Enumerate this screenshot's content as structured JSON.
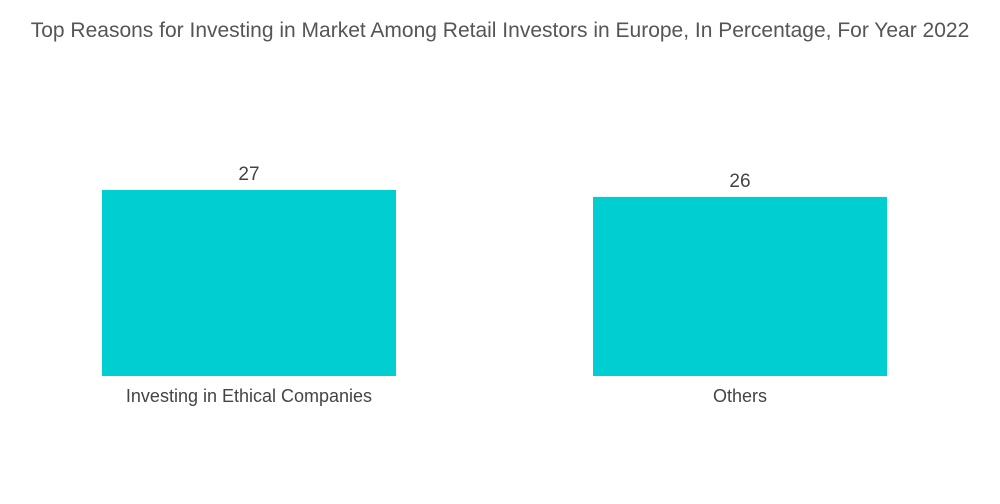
{
  "chart_data": {
    "type": "bar",
    "title": "Top Reasons for Investing in Market Among Retail Investors in Europe, In Percentage, For Year 2022",
    "categories": [
      "Investing in Ethical Companies",
      "Others"
    ],
    "values": [
      27,
      26
    ],
    "xlabel": "",
    "ylabel": "",
    "ylim": [
      0,
      27
    ],
    "grid": false,
    "legend": "none",
    "colors": {
      "bar": "#00CED1",
      "text": "#444444"
    }
  }
}
